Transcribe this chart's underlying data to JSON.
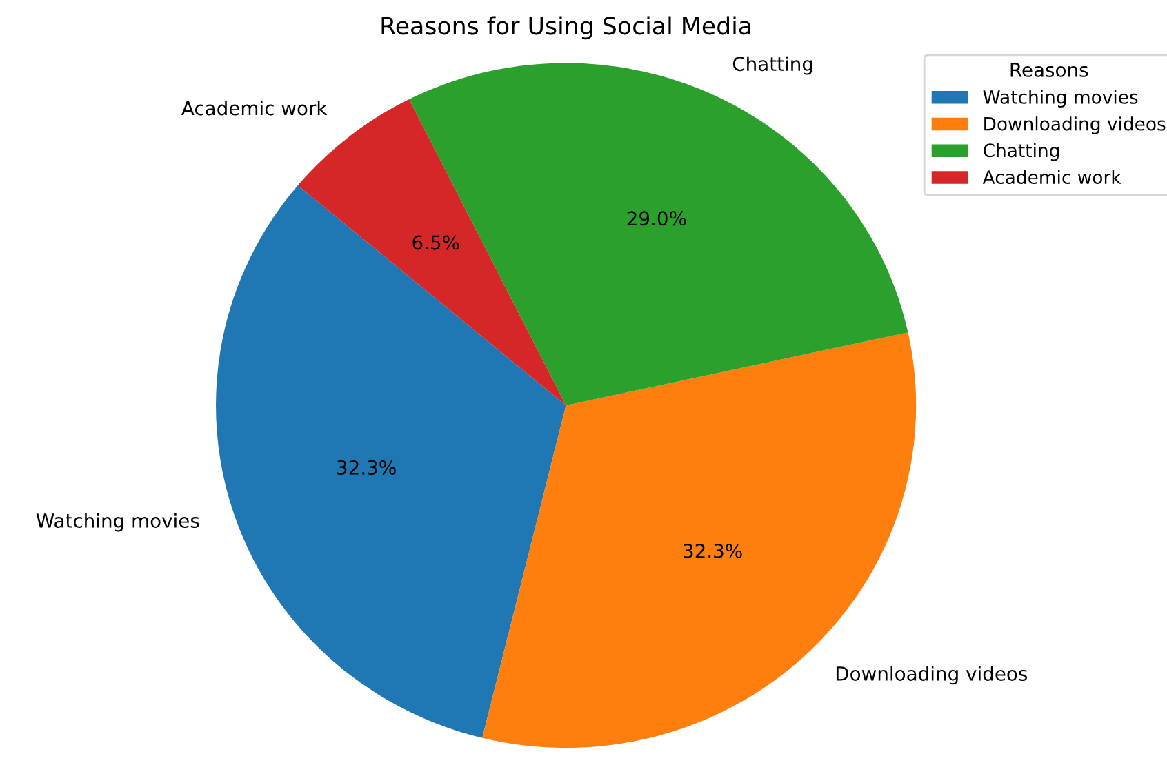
{
  "chart_data": {
    "type": "pie",
    "title": "Reasons for Using Social Media",
    "categories": [
      "Watching movies",
      "Downloading videos",
      "Chatting",
      "Academic work"
    ],
    "values": [
      32.3,
      32.3,
      29.0,
      6.5
    ],
    "colors": [
      "#1f77b4",
      "#ff7f0e",
      "#2ca02c",
      "#d62728"
    ],
    "value_labels": [
      "32.3%",
      "32.3%",
      "29.0%",
      "6.5%"
    ],
    "legend": "top right",
    "legend_title": "Reasons"
  }
}
